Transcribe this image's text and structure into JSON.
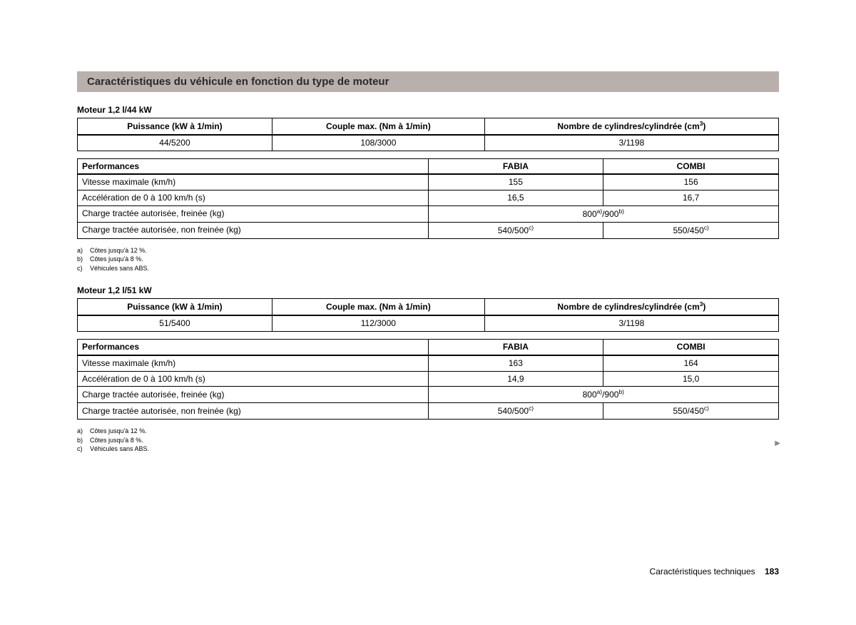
{
  "colors": {
    "header_bg": "#b9b0ad",
    "border": "#000000",
    "text": "#000000",
    "page_bg": "#ffffff"
  },
  "section_title": "Caractéristiques du véhicule en fonction du type de moteur",
  "spec_headers": {
    "power": "Puissance (kW à 1/min)",
    "torque": "Couple max. (Nm à 1/min)",
    "cylinders_prefix": "Nombre de cylindres/cylindrée (cm",
    "cylinders_sup": "3",
    "cylinders_suffix": ")"
  },
  "perf_headers": {
    "label": "Performances",
    "fabia": "FABIA",
    "combi": "COMBI"
  },
  "perf_row_labels": {
    "vmax": "Vitesse maximale (km/h)",
    "accel": "Accélération de 0 à 100 km/h (s)",
    "braked": "Charge tractée autorisée, freinée (kg)",
    "unbraked": "Charge tractée autorisée, non freinée (kg)"
  },
  "footnote_texts": {
    "a": "Côtes jusqu'à 12 %.",
    "b": "Côtes jusqu'à 8 %.",
    "c": "Véhicules sans ABS."
  },
  "engines": [
    {
      "title": "Moteur 1,2 l/44 kW",
      "specs": {
        "power": "44/5200",
        "torque": "108/3000",
        "cylinders": "3/1198"
      },
      "perf": {
        "vmax": {
          "fabia": "155",
          "combi": "156"
        },
        "accel": {
          "fabia": "16,5",
          "combi": "16,7"
        },
        "braked_merged": {
          "prefix": "800",
          "sup1": "a)",
          "mid": "/900",
          "sup2": "b)"
        },
        "unbraked": {
          "fabia": {
            "prefix": "540/500",
            "sup": "c)"
          },
          "combi": {
            "prefix": "550/450",
            "sup": "c)"
          }
        }
      }
    },
    {
      "title": "Moteur 1,2 l/51 kW",
      "specs": {
        "power": "51/5400",
        "torque": "112/3000",
        "cylinders": "3/1198"
      },
      "perf": {
        "vmax": {
          "fabia": "163",
          "combi": "164"
        },
        "accel": {
          "fabia": "14,9",
          "combi": "15,0"
        },
        "braked_merged": {
          "prefix": "800",
          "sup1": "a)",
          "mid": "/900",
          "sup2": "b)"
        },
        "unbraked": {
          "fabia": {
            "prefix": "540/500",
            "sup": "c)"
          },
          "combi": {
            "prefix": "550/450",
            "sup": "c)"
          }
        }
      }
    }
  ],
  "footer": {
    "label": "Caractéristiques techniques",
    "page": "183"
  }
}
